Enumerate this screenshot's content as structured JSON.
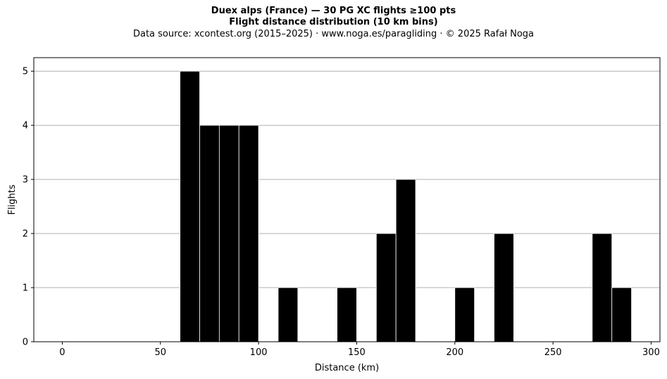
{
  "chart_data": {
    "type": "bar",
    "title": "Duex alps (France)  —  30 PG XC flights ≥100 pts",
    "subtitle": "Flight distance distribution (10 km bins)",
    "source_note": "Data source: xcontest.org (2015–2025)  ·  www.noga.es/paragliding  ·  © 2025 Rafał Noga",
    "xlabel": "Distance (km)",
    "ylabel": "Flights",
    "bin_width": 10,
    "bins": [
      {
        "start": 60,
        "end": 70,
        "count": 5
      },
      {
        "start": 70,
        "end": 80,
        "count": 4
      },
      {
        "start": 80,
        "end": 90,
        "count": 4
      },
      {
        "start": 90,
        "end": 100,
        "count": 4
      },
      {
        "start": 110,
        "end": 120,
        "count": 1
      },
      {
        "start": 140,
        "end": 150,
        "count": 1
      },
      {
        "start": 160,
        "end": 170,
        "count": 2
      },
      {
        "start": 170,
        "end": 180,
        "count": 3
      },
      {
        "start": 200,
        "end": 210,
        "count": 1
      },
      {
        "start": 220,
        "end": 230,
        "count": 2
      },
      {
        "start": 270,
        "end": 280,
        "count": 2
      },
      {
        "start": 280,
        "end": 290,
        "count": 1
      }
    ],
    "xlim": [
      -14.5,
      304.5
    ],
    "ylim": [
      0,
      5.25
    ],
    "xticks": [
      0,
      50,
      100,
      150,
      200,
      250,
      300
    ],
    "yticks": [
      0,
      1,
      2,
      3,
      4,
      5
    ],
    "grid": "y",
    "bar_color": "#000000",
    "bar_edge_color": "#ffffff",
    "grid_color": "#b0b0b0"
  }
}
